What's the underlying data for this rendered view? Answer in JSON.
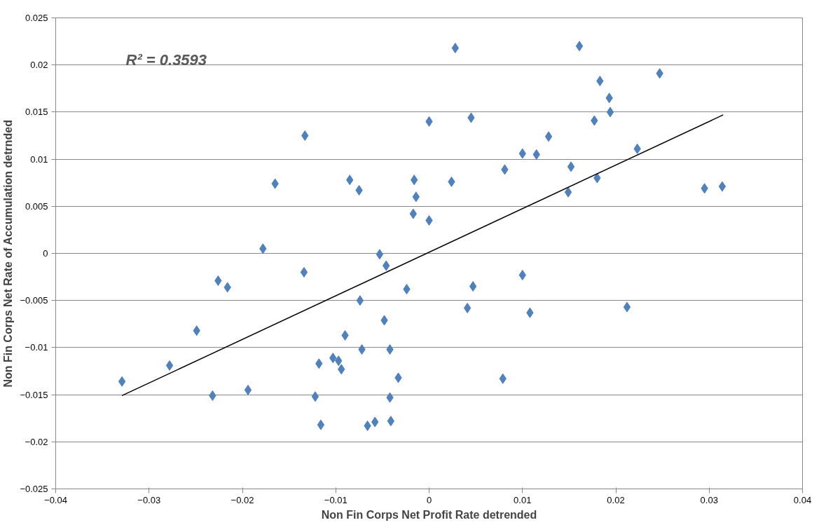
{
  "chart_data": {
    "type": "scatter",
    "xlabel": "Non Fin Corps Net Profit Rate detrended",
    "ylabel": "Non Fin Corps Net Rate of Accumulation detrnded",
    "annotations": [
      "R² = 0.3593"
    ],
    "xlim": [
      -0.04,
      0.04
    ],
    "xticks": [
      -0.04,
      -0.03,
      -0.02,
      -0.01,
      0,
      0.01,
      0.02,
      0.03,
      0.04
    ],
    "ylim": [
      -0.025,
      0.025
    ],
    "yticks": [
      -0.025,
      -0.02,
      -0.015,
      -0.01,
      -0.005,
      0,
      0.005,
      0.01,
      0.015,
      0.02,
      0.025
    ],
    "grid": "y",
    "marker": "diamond",
    "series": [
      {
        "color": "#4f81bd",
        "x": [
          0.0028,
          0.0161,
          0.0247,
          0.0183,
          0.0193,
          0.0194,
          0.0177,
          0,
          0.0045,
          -0.0133,
          0.0128,
          0.01,
          0.0115,
          0.0223,
          0.0152,
          0.0081,
          0.0024,
          0.018,
          0.0149,
          0.0295,
          0.0314,
          -0.0165,
          -0.0085,
          -0.0075,
          -0.0016,
          -0.0014,
          -0.0017,
          0,
          -0.0178,
          -0.0053,
          -0.0046,
          -0.0134,
          -0.0226,
          -0.0216,
          -0.0024,
          -0.0074,
          0.0047,
          0.0041,
          0.01,
          0.0108,
          0.0212,
          -0.0048,
          -0.0249,
          -0.009,
          -0.0042,
          -0.0072,
          -0.0103,
          -0.0097,
          -0.0094,
          -0.0118,
          -0.0278,
          -0.0033,
          -0.0329,
          0.0079,
          -0.0194,
          -0.0232,
          -0.0122,
          -0.0042,
          -0.0116,
          -0.0066,
          -0.0058,
          -0.0041
        ],
        "values": [
          0.0218,
          0.022,
          0.0191,
          0.0183,
          0.0165,
          0.015,
          0.0141,
          0.014,
          0.0144,
          0.0125,
          0.0124,
          0.0106,
          0.0105,
          0.0111,
          0.0092,
          0.0089,
          0.0076,
          0.008,
          0.0065,
          0.0069,
          0.0071,
          0.0074,
          0.0078,
          0.0067,
          0.0078,
          0.006,
          0.0042,
          0.0035,
          0.0005,
          -0.0001,
          -0.0013,
          -0.002,
          -0.0029,
          -0.0036,
          -0.0038,
          -0.005,
          -0.0035,
          -0.0058,
          -0.0023,
          -0.0063,
          -0.0057,
          -0.0071,
          -0.0082,
          -0.0087,
          -0.0102,
          -0.0102,
          -0.0111,
          -0.0114,
          -0.0123,
          -0.0117,
          -0.0119,
          -0.0132,
          -0.0136,
          -0.0133,
          -0.0145,
          -0.0151,
          -0.0152,
          -0.0153,
          -0.0182,
          -0.0183,
          -0.0179,
          -0.0178
        ]
      },
      {
        "type": "line",
        "marker": "none",
        "color": "#000000",
        "x": [
          -0.0329,
          0.0315
        ],
        "values": [
          -0.0151,
          0.0147
        ]
      }
    ]
  }
}
